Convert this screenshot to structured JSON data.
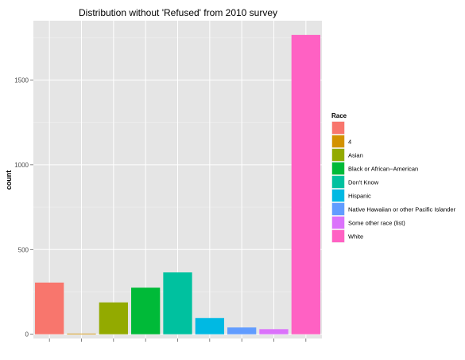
{
  "chart_data": {
    "type": "bar",
    "title": "Distribution without 'Refused' from 2010 survey",
    "xlabel": "",
    "ylabel": "count",
    "categories": [
      "",
      "4",
      "Asian",
      "Black or African−American",
      "Don't Know",
      "Hispanic",
      "Native Hawaiian or other Pacific Islander",
      "Some other race (list)",
      "White"
    ],
    "values": [
      305,
      4,
      188,
      275,
      365,
      96,
      40,
      30,
      1766
    ],
    "colors": [
      "#F8766D",
      "#D39200",
      "#93AA00",
      "#00BA38",
      "#00C19F",
      "#00B9E3",
      "#619CFF",
      "#DB72FB",
      "#FF61C3"
    ],
    "ylim": [
      -25,
      1850
    ],
    "yticks": [
      0,
      500,
      1000,
      1500
    ],
    "grid": true,
    "panel_background": "#E5E5E5",
    "legend": {
      "title": "Race",
      "placement": "right"
    }
  }
}
